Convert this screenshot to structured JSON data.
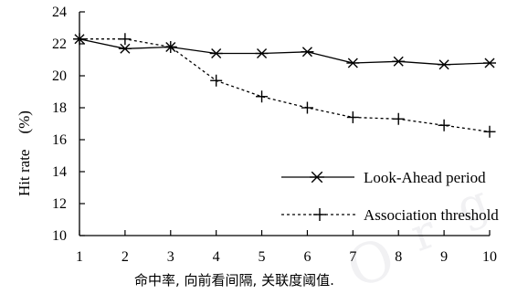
{
  "chart_data": {
    "type": "line",
    "x": [
      1,
      2,
      3,
      4,
      5,
      6,
      7,
      8,
      9,
      10
    ],
    "xlim": [
      1,
      10
    ],
    "ylim": [
      10,
      24
    ],
    "xticks": [
      "1",
      "2",
      "3",
      "4",
      "5",
      "6",
      "7",
      "8",
      "9",
      "10"
    ],
    "yticks": [
      "10",
      "12",
      "14",
      "16",
      "18",
      "20",
      "22",
      "24"
    ],
    "ylabel": "Hit rate　(%)",
    "xlabel": "命中率,  向前看间隔,  关联度阈值.",
    "grid": false,
    "legend_position": "center-right",
    "series": [
      {
        "name": "Look-Ahead period",
        "marker": "asterisk",
        "line_style": "solid",
        "color": "#000000",
        "values": [
          22.3,
          21.7,
          21.8,
          21.4,
          21.4,
          21.5,
          20.8,
          20.9,
          20.7,
          20.8
        ]
      },
      {
        "name": "Association threshold",
        "marker": "plus",
        "line_style": "dotted",
        "color": "#000000",
        "values": [
          22.3,
          22.3,
          21.8,
          19.7,
          18.7,
          18.0,
          17.4,
          17.3,
          16.9,
          16.5
        ]
      }
    ]
  }
}
